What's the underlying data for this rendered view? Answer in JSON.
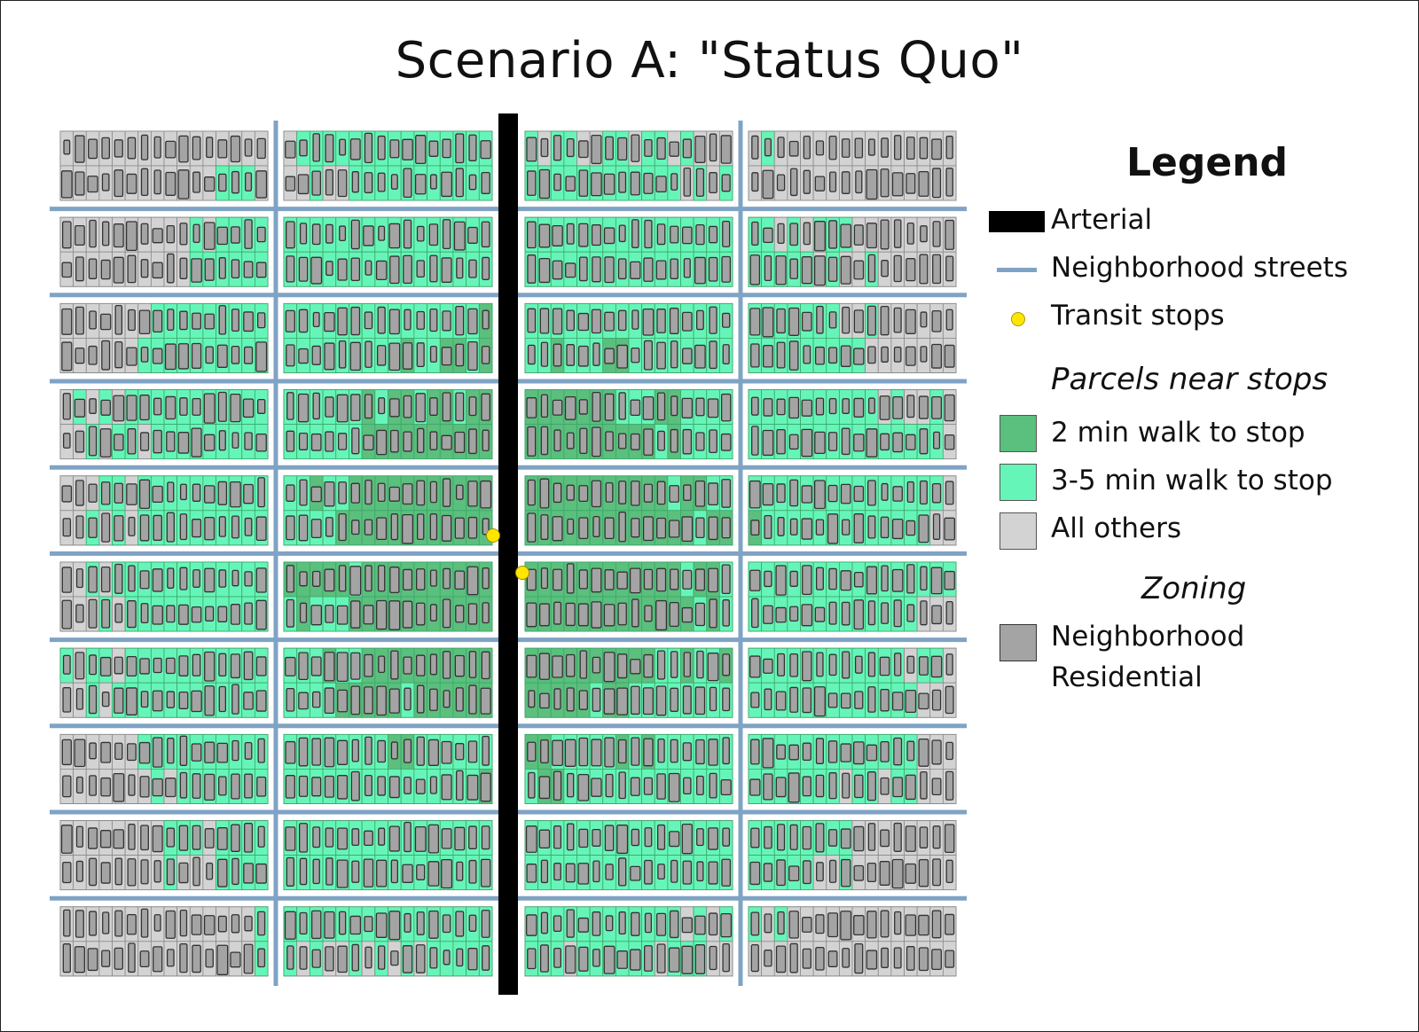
{
  "title": "Scenario A: \"Status Quo\"",
  "legend": {
    "title": "Legend",
    "arterial": "Arterial",
    "streets": "Neighborhood streets",
    "stops": "Transit stops",
    "parcels_heading": "Parcels near stops",
    "walk2": "2 min walk to stop",
    "walk35": "3-5 min walk to stop",
    "others": "All others",
    "zoning_heading": "Zoning",
    "zoning_line1": "Neighborhood",
    "zoning_line2": "Residential"
  },
  "colors": {
    "arterial": "#000000",
    "streets": "#7fa3c4",
    "stop": "#ffe600",
    "walk2": "#5bbf7d",
    "walk35": "#66f5b8",
    "others": "#d3d3d3",
    "zoning": "#a4a4a4",
    "outline_green": "#44dd44"
  },
  "map": {
    "block_columns": 4,
    "block_rows": 10,
    "transit_stops": 2,
    "zoning": "Neighborhood Residential"
  }
}
